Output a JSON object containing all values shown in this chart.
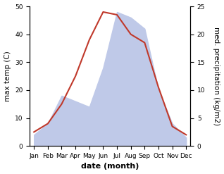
{
  "months": [
    "Jan",
    "Feb",
    "Mar",
    "Apr",
    "May",
    "Jun",
    "Jul",
    "Aug",
    "Sep",
    "Oct",
    "Nov",
    "Dec"
  ],
  "temp": [
    5,
    8,
    15,
    25,
    38,
    48,
    47,
    40,
    37,
    21,
    7,
    4
  ],
  "precip": [
    2,
    4,
    9,
    8,
    7,
    14,
    24,
    23,
    21,
    10,
    4,
    1.5
  ],
  "temp_color": "#c0392b",
  "precip_fill_color": "#bfc9e8",
  "ylim_temp": [
    0,
    50
  ],
  "ylim_precip": [
    0,
    25
  ],
  "ylabel_left": "max temp (C)",
  "ylabel_right": "med. precipitation (kg/m2)",
  "xlabel": "date (month)",
  "bg_color": "#ffffff",
  "temp_linewidth": 1.5,
  "xlabel_fontsize": 8,
  "ylabel_fontsize": 7.5,
  "tick_fontsize": 6.5
}
